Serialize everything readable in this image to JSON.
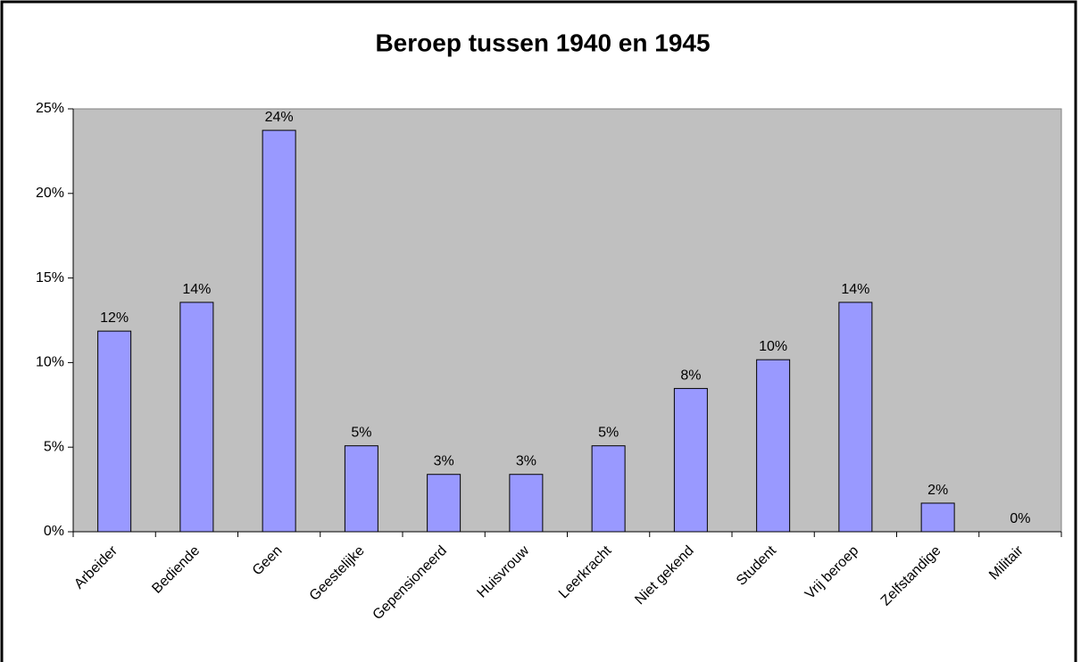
{
  "chart_data": {
    "type": "bar",
    "title": "Beroep tussen 1940 en 1945",
    "categories": [
      "Arbeider",
      "Bediende",
      "Geen",
      "Geestelijke",
      "Gepensioneerd",
      "Huisvrouw",
      "Leerkracht",
      "Niet gekend",
      "Student",
      "Vrij beroep",
      "Zelfstandige",
      "Militair"
    ],
    "values": [
      11.86,
      13.56,
      23.73,
      5.08,
      3.39,
      3.39,
      5.08,
      8.47,
      10.17,
      13.56,
      1.69,
      0
    ],
    "value_labels": [
      "12%",
      "14%",
      "24%",
      "5%",
      "3%",
      "3%",
      "5%",
      "8%",
      "10%",
      "14%",
      "2%",
      "0%"
    ],
    "color": "#9999ff",
    "ylim": [
      0,
      25
    ],
    "yticks": [
      {
        "value": 0,
        "label": "0%"
      },
      {
        "value": 5,
        "label": "5%"
      },
      {
        "value": 10,
        "label": "10%"
      },
      {
        "value": 15,
        "label": "15%"
      },
      {
        "value": 20,
        "label": "20%"
      },
      {
        "value": 25,
        "label": "25%"
      }
    ],
    "grid": false
  }
}
